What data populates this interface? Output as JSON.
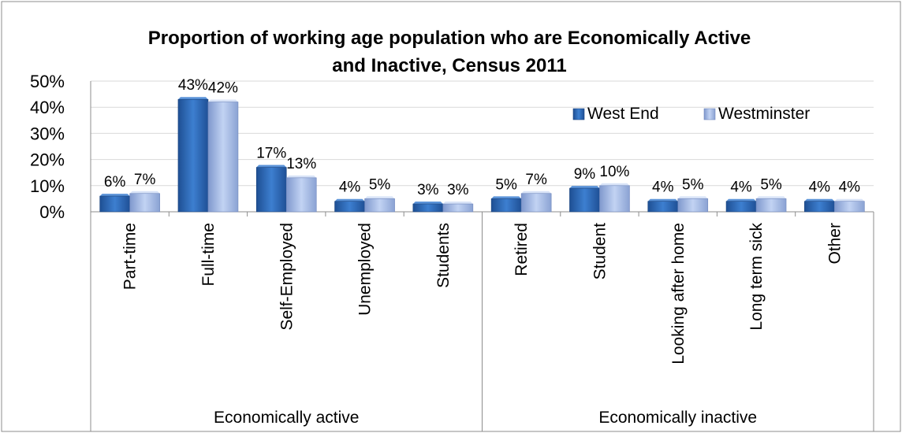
{
  "chart_data": {
    "type": "bar",
    "title_line1": "Proportion of working age population who are Economically Active",
    "title_line2": "and  Inactive, Census 2011",
    "categories": [
      "Part-time",
      "Full-time",
      "Self-Employed",
      "Unemployed",
      "Students",
      "Retired",
      "Student",
      "Looking after home",
      "Long term sick",
      "Other"
    ],
    "groups": [
      {
        "label": "Economically active",
        "start": 0,
        "count": 5
      },
      {
        "label": "Economically inactive",
        "start": 5,
        "count": 5
      }
    ],
    "series": [
      {
        "name": "West End",
        "values": [
          6,
          43,
          17,
          4,
          3,
          5,
          9,
          4,
          4,
          4
        ],
        "labels": [
          "6%",
          "43%",
          "17%",
          "4%",
          "3%",
          "5%",
          "9%",
          "4%",
          "4%",
          "4%"
        ],
        "color": "#2f6fbf"
      },
      {
        "name": "Westminster",
        "values": [
          7,
          42,
          13,
          5,
          3,
          7,
          10,
          5,
          5,
          4
        ],
        "labels": [
          "7%",
          "42%",
          "13%",
          "5%",
          "3%",
          "7%",
          "10%",
          "5%",
          "5%",
          "4%"
        ],
        "color": "#9fb7e6"
      }
    ],
    "y_ticks": [
      "0%",
      "10%",
      "20%",
      "30%",
      "40%",
      "50%"
    ],
    "ylim": [
      0,
      50
    ],
    "legend_position": "top-right",
    "grid": true
  }
}
